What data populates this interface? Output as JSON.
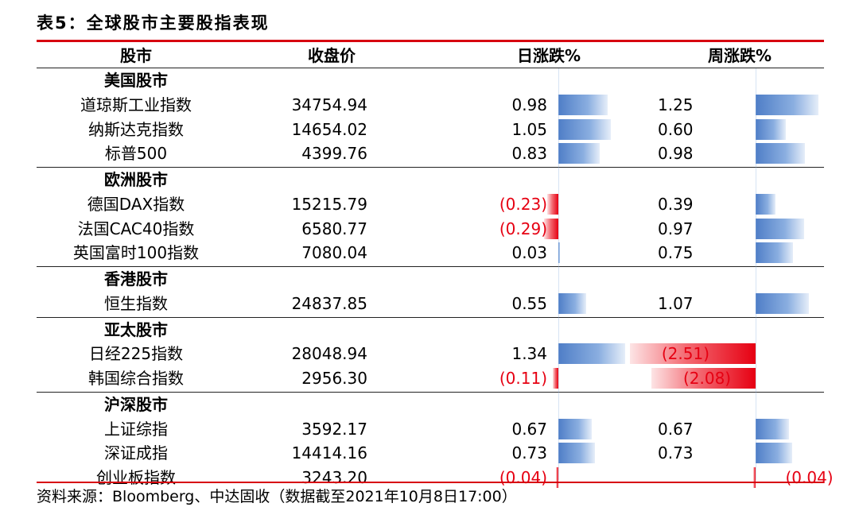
{
  "title": "表5：全球股市主要股指表现",
  "headers": {
    "market": "股市",
    "close": "收盘价",
    "daily": "日涨跌%",
    "weekly": "周涨跌%"
  },
  "source": "资料来源：Bloomberg、中达固收（数据截至2021年10月8日17:00）",
  "colors": {
    "accent_red": "#d7000f",
    "bar_positive": "#4f7ec7",
    "bar_negative": "#e60012"
  },
  "chart_data": {
    "type": "table",
    "groups": [
      {
        "name": "美国股市",
        "rows": [
          {
            "name": "道琼斯工业指数",
            "close": "34754.94",
            "daily": 0.98,
            "daily_label": "0.98",
            "weekly": 1.25,
            "weekly_label": "1.25"
          },
          {
            "name": "纳斯达克指数",
            "close": "14654.02",
            "daily": 1.05,
            "daily_label": "1.05",
            "weekly": 0.6,
            "weekly_label": "0.60"
          },
          {
            "name": "标普500",
            "close": "4399.76",
            "daily": 0.83,
            "daily_label": "0.83",
            "weekly": 0.98,
            "weekly_label": "0.98"
          }
        ]
      },
      {
        "name": "欧洲股市",
        "rows": [
          {
            "name": "德国DAX指数",
            "close": "15215.79",
            "daily": -0.23,
            "daily_label": "(0.23)",
            "weekly": 0.39,
            "weekly_label": "0.39"
          },
          {
            "name": "法国CAC40指数",
            "close": "6580.77",
            "daily": -0.29,
            "daily_label": "(0.29)",
            "weekly": 0.97,
            "weekly_label": "0.97"
          },
          {
            "name": "英国富时100指数",
            "close": "7080.04",
            "daily": 0.03,
            "daily_label": "0.03",
            "weekly": 0.75,
            "weekly_label": "0.75"
          }
        ]
      },
      {
        "name": "香港股市",
        "rows": [
          {
            "name": "恒生指数",
            "close": "24837.85",
            "daily": 0.55,
            "daily_label": "0.55",
            "weekly": 1.07,
            "weekly_label": "1.07"
          }
        ]
      },
      {
        "name": "亚太股市",
        "rows": [
          {
            "name": "日经225指数",
            "close": "28048.94",
            "daily": 1.34,
            "daily_label": "1.34",
            "weekly": -2.51,
            "weekly_label": "(2.51)"
          },
          {
            "name": "韩国综合指数",
            "close": "2956.30",
            "daily": -0.11,
            "daily_label": "(0.11)",
            "weekly": -2.08,
            "weekly_label": "(2.08)"
          }
        ]
      },
      {
        "name": "沪深股市",
        "rows": [
          {
            "name": "上证综指",
            "close": "3592.17",
            "daily": 0.67,
            "daily_label": "0.67",
            "weekly": 0.67,
            "weekly_label": "0.67"
          },
          {
            "name": "深证成指",
            "close": "14414.16",
            "daily": 0.73,
            "daily_label": "0.73",
            "weekly": 0.73,
            "weekly_label": "0.73"
          },
          {
            "name": "创业板指数",
            "close": "3243.20",
            "daily": -0.04,
            "daily_label": "(0.04)",
            "weekly": -0.04,
            "weekly_label": "(0.04)"
          }
        ]
      }
    ]
  }
}
